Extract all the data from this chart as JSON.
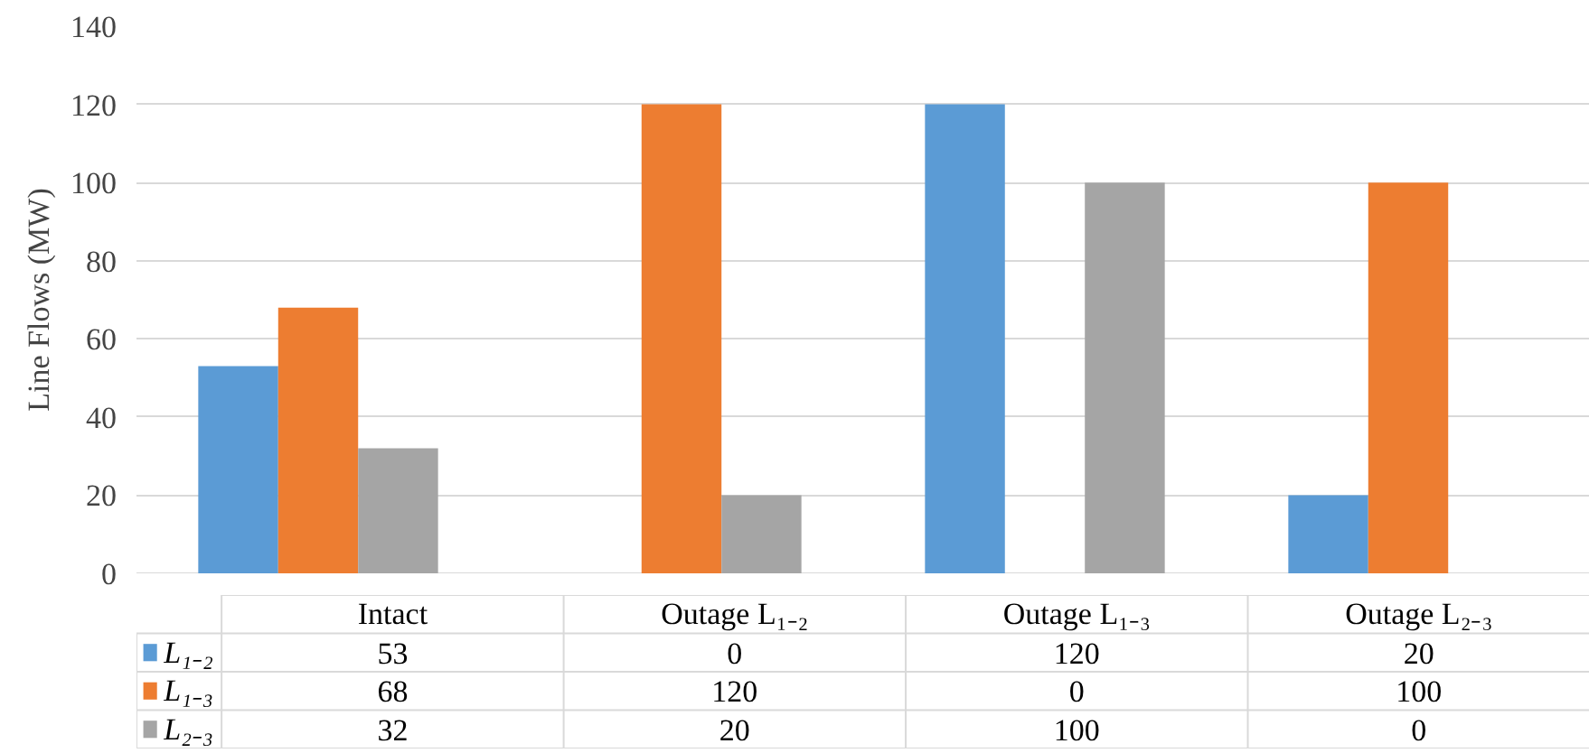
{
  "chart_data": {
    "type": "bar",
    "ylabel": "Line Flows (MW)",
    "categories": [
      "Intact",
      "Outage L₁₋₂",
      "Outage L₁₋₃",
      "Outage L₂₋₃"
    ],
    "series": [
      {
        "name": "L₁₋₂",
        "color": "#5b9bd5",
        "values": [
          53,
          0,
          120,
          20
        ]
      },
      {
        "name": "L₁₋₃",
        "color": "#ed7d31",
        "values": [
          68,
          120,
          0,
          100
        ]
      },
      {
        "name": "L₂₋₃",
        "color": "#a5a5a5",
        "values": [
          32,
          20,
          100,
          0
        ]
      }
    ],
    "ylim": [
      0,
      140
    ],
    "yticks": [
      0,
      20,
      40,
      60,
      80,
      100,
      120,
      140
    ],
    "grid": "y",
    "legend": "bottom",
    "data_labels": true
  }
}
